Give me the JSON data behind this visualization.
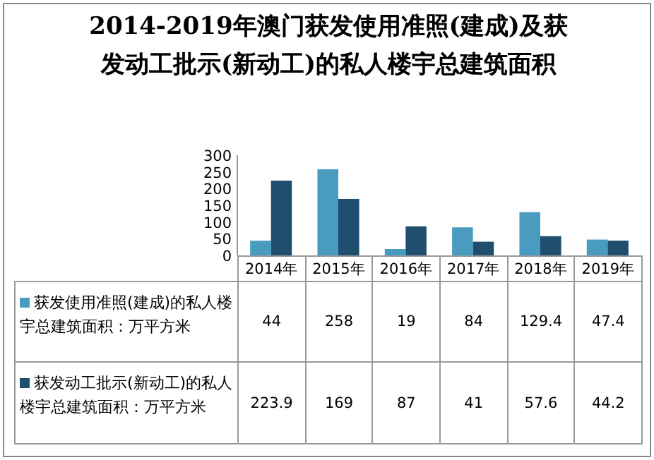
{
  "chart_data": {
    "type": "bar",
    "title": "2014-2019年澳门获发使用准照(建成)及获发动工批示(新动工)的私人楼宇总建筑面积",
    "categories": [
      "2014年",
      "2015年",
      "2016年",
      "2017年",
      "2018年",
      "2019年"
    ],
    "series": [
      {
        "name": "获发使用准照(建成)的私人楼宇总建筑面积：万平方米",
        "color": "#4a9bc0",
        "values": [
          44,
          258,
          19,
          84,
          129.4,
          47.4
        ]
      },
      {
        "name": "获发动工批示(新动工)的私人楼宇总建筑面积：万平方米",
        "color": "#1f4e6e",
        "values": [
          223.9,
          169,
          87,
          41,
          57.6,
          44.2
        ]
      }
    ],
    "ylim": [
      0,
      300
    ],
    "yticks": [
      0,
      50,
      100,
      150,
      200,
      250,
      300
    ],
    "grid": false,
    "data_labels": true,
    "legend": "bottom"
  }
}
